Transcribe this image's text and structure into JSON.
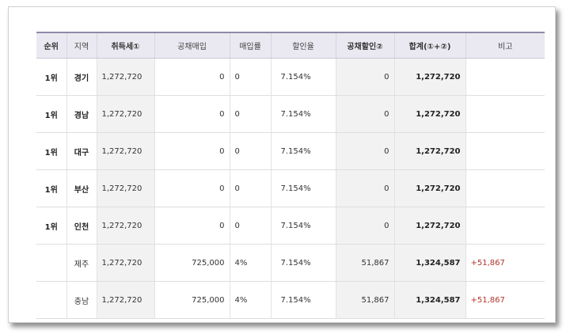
{
  "table": {
    "headers": {
      "rank": "순위",
      "region": "지역",
      "tax": "취득세①",
      "bond_purchase": "공채매입",
      "purchase_rate": "매입률",
      "discount_rate": "할인율",
      "bond_discount": "공채할인②",
      "total": "합계(①+②)",
      "note": "비고"
    },
    "rows": [
      {
        "rank": "1위",
        "region": "경기",
        "tax": "1,272,720",
        "bond_purchase": "0",
        "purchase_rate": "0",
        "discount_rate": "7.154%",
        "bond_discount": "0",
        "total": "1,272,720",
        "note": ""
      },
      {
        "rank": "1위",
        "region": "경남",
        "tax": "1,272,720",
        "bond_purchase": "0",
        "purchase_rate": "0",
        "discount_rate": "7.154%",
        "bond_discount": "0",
        "total": "1,272,720",
        "note": ""
      },
      {
        "rank": "1위",
        "region": "대구",
        "tax": "1,272,720",
        "bond_purchase": "0",
        "purchase_rate": "0",
        "discount_rate": "7.154%",
        "bond_discount": "0",
        "total": "1,272,720",
        "note": ""
      },
      {
        "rank": "1위",
        "region": "부산",
        "tax": "1,272,720",
        "bond_purchase": "0",
        "purchase_rate": "0",
        "discount_rate": "7.154%",
        "bond_discount": "0",
        "total": "1,272,720",
        "note": ""
      },
      {
        "rank": "1위",
        "region": "인천",
        "tax": "1,272,720",
        "bond_purchase": "0",
        "purchase_rate": "0",
        "discount_rate": "7.154%",
        "bond_discount": "0",
        "total": "1,272,720",
        "note": ""
      },
      {
        "rank": "",
        "region": "제주",
        "tax": "1,272,720",
        "bond_purchase": "725,000",
        "purchase_rate": "4%",
        "discount_rate": "7.154%",
        "bond_discount": "51,867",
        "total": "1,324,587",
        "note": "+51,867"
      },
      {
        "rank": "",
        "region": "충남",
        "tax": "1,272,720",
        "bond_purchase": "725,000",
        "purchase_rate": "4%",
        "discount_rate": "7.154%",
        "bond_discount": "51,867",
        "total": "1,324,587",
        "note": "+51,867"
      }
    ]
  },
  "colors": {
    "header_bg": "#eae9f1",
    "header_top_border": "#8e8aa8",
    "grey_cell": "#f2f2f2",
    "positive_diff": "#b0352d"
  }
}
